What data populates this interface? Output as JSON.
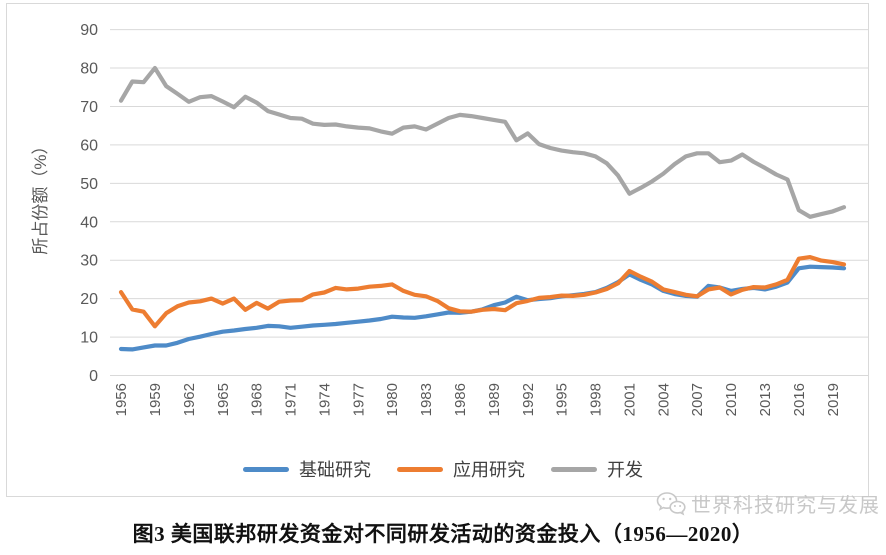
{
  "chart_data": {
    "type": "line",
    "title": "图3 美国联邦研发资金对不同研发活动的资金投入（1956—2020）",
    "xlabel": "",
    "ylabel": "所占份额（%）",
    "ylim": [
      0,
      90
    ],
    "ytick_step": 10,
    "y_tick_labels": [
      "0",
      "10",
      "20",
      "30",
      "40",
      "50",
      "60",
      "70",
      "80",
      "90"
    ],
    "x_tick_labels": [
      "1956",
      "1959",
      "1962",
      "1965",
      "1968",
      "1971",
      "1974",
      "1977",
      "1980",
      "1983",
      "1986",
      "1989",
      "1992",
      "1995",
      "1998",
      "2001",
      "2004",
      "2007",
      "2010",
      "2013",
      "2016",
      "2019"
    ],
    "grid": true,
    "legend_position": "bottom",
    "gridline_color": "#d9d9d9",
    "axis_text_color": "#595959",
    "years": [
      1956,
      1957,
      1958,
      1959,
      1960,
      1961,
      1962,
      1963,
      1964,
      1965,
      1966,
      1967,
      1968,
      1969,
      1970,
      1971,
      1972,
      1973,
      1974,
      1975,
      1976,
      1977,
      1978,
      1979,
      1980,
      1981,
      1982,
      1983,
      1984,
      1985,
      1986,
      1987,
      1988,
      1989,
      1990,
      1991,
      1992,
      1993,
      1994,
      1995,
      1996,
      1997,
      1998,
      1999,
      2000,
      2001,
      2002,
      2003,
      2004,
      2005,
      2006,
      2007,
      2008,
      2009,
      2010,
      2011,
      2012,
      2013,
      2014,
      2015,
      2016,
      2017,
      2018,
      2019,
      2020
    ],
    "series": [
      {
        "name": "基础研究",
        "color": "#4e8bc8",
        "values": [
          6.9,
          6.8,
          7.3,
          7.8,
          7.8,
          8.5,
          9.5,
          10.1,
          10.8,
          11.4,
          11.7,
          12.1,
          12.4,
          12.9,
          12.8,
          12.4,
          12.7,
          13.0,
          13.2,
          13.4,
          13.7,
          14.0,
          14.3,
          14.7,
          15.3,
          15.1,
          15.0,
          15.4,
          15.9,
          16.4,
          16.3,
          16.6,
          17.2,
          18.3,
          19.0,
          20.5,
          19.6,
          19.9,
          20.1,
          20.6,
          20.9,
          21.2,
          21.7,
          22.8,
          24.3,
          26.3,
          24.9,
          23.7,
          22.0,
          21.2,
          20.7,
          20.5,
          23.3,
          22.9,
          22.0,
          22.5,
          22.8,
          22.4,
          23.1,
          24.2,
          27.9,
          28.3,
          28.2,
          28.1,
          27.9
        ]
      },
      {
        "name": "应用研究",
        "color": "#ed7d31",
        "values": [
          21.7,
          17.2,
          16.6,
          12.8,
          16.2,
          18.0,
          19.0,
          19.3,
          20.0,
          18.7,
          20.0,
          17.1,
          18.9,
          17.4,
          19.2,
          19.5,
          19.6,
          21.1,
          21.6,
          22.8,
          22.4,
          22.6,
          23.1,
          23.3,
          23.7,
          22.0,
          21.0,
          20.6,
          19.4,
          17.5,
          16.7,
          16.6,
          17.1,
          17.3,
          17.0,
          18.8,
          19.4,
          20.2,
          20.4,
          20.8,
          20.7,
          21.0,
          21.6,
          22.5,
          24.0,
          27.2,
          25.7,
          24.4,
          22.4,
          21.7,
          21.0,
          20.6,
          22.4,
          22.9,
          21.1,
          22.3,
          23.0,
          22.9,
          23.7,
          24.9,
          30.4,
          30.8,
          29.9,
          29.5,
          28.9
        ]
      },
      {
        "name": "开发",
        "color": "#a6a6a6",
        "values": [
          71.5,
          76.5,
          76.3,
          80.0,
          75.3,
          73.3,
          71.2,
          72.4,
          72.7,
          71.3,
          69.8,
          72.5,
          71.0,
          68.8,
          67.9,
          67.0,
          66.8,
          65.5,
          65.2,
          65.3,
          64.8,
          64.5,
          64.3,
          63.5,
          62.9,
          64.5,
          64.8,
          64.0,
          65.5,
          67.0,
          67.8,
          67.5,
          67.0,
          66.5,
          66.0,
          61.2,
          63.0,
          60.2,
          59.2,
          58.5,
          58.1,
          57.8,
          57.0,
          55.2,
          52.0,
          47.3,
          48.8,
          50.5,
          52.5,
          55.0,
          57.0,
          57.8,
          57.8,
          55.5,
          55.9,
          57.5,
          55.6,
          54.0,
          52.3,
          51.0,
          43.0,
          41.3,
          42.0,
          42.7,
          43.8
        ]
      }
    ]
  },
  "caption": "图3 美国联邦研发资金对不同研发活动的资金投入（1956—2020）",
  "watermark": {
    "text": "世界科技研究与发展",
    "icon": "wechat-icon",
    "color": "#c8c8c8"
  }
}
